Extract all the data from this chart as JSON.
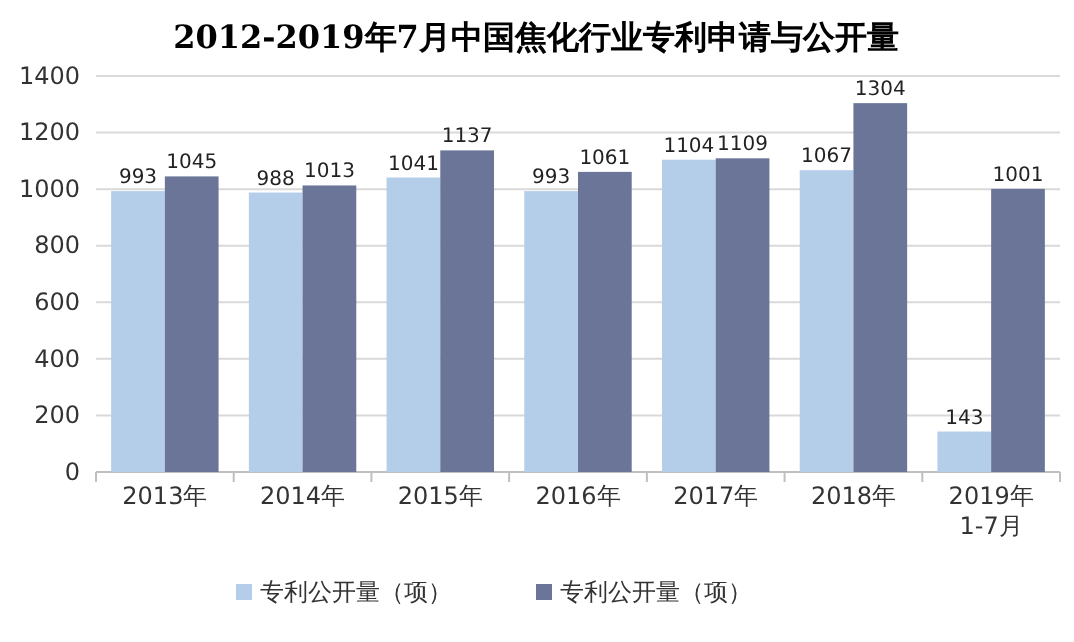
{
  "chart_data": {
    "type": "bar",
    "title": "2012-2019年7月中国焦化行业专利申请与公开量",
    "categories": [
      "2013年",
      "2014年",
      "2015年",
      "2016年",
      "2017年",
      "2018年",
      "2019年\n1-7月"
    ],
    "series": [
      {
        "name": "专利公开量（项）",
        "color": "#b4cde9",
        "values": [
          993,
          988,
          1041,
          993,
          1104,
          1067,
          143
        ]
      },
      {
        "name": "专利公开量（项）",
        "color": "#6a7598",
        "values": [
          1045,
          1013,
          1137,
          1061,
          1109,
          1304,
          1001
        ]
      }
    ],
    "ylim": [
      0,
      1400
    ],
    "yticks": [
      0,
      200,
      400,
      600,
      800,
      1000,
      1200,
      1400
    ],
    "grid": "y",
    "legend": "bottom",
    "data_labels": true
  }
}
